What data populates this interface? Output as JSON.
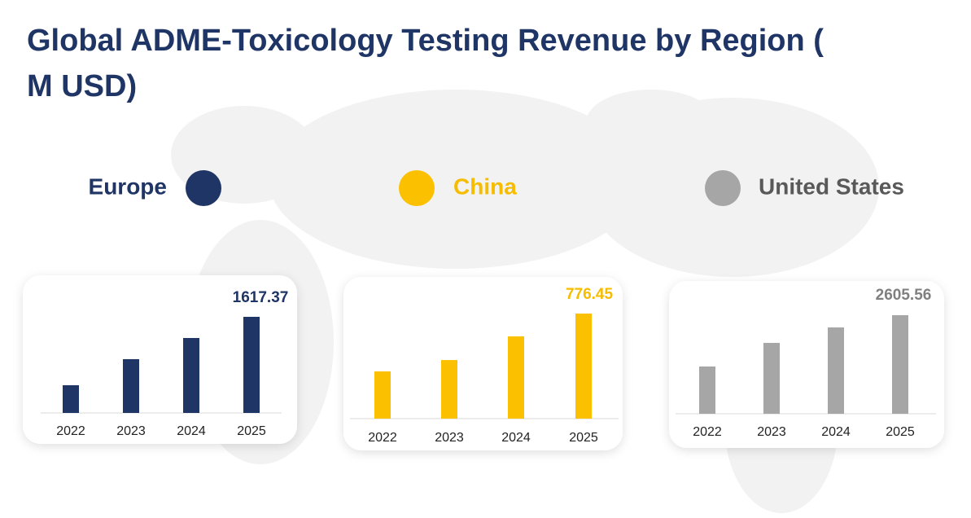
{
  "title": "Global ADME-Toxicology Testing Revenue by Region (M USD)",
  "chart_data": [
    {
      "type": "bar",
      "categories": [
        "2022",
        "2023",
        "2024",
        "2025"
      ],
      "series": [
        {
          "name": "Europe",
          "color": "#1f3566",
          "values": [
            466,
            905,
            1261,
            1617.37
          ]
        }
      ]
    },
    {
      "type": "bar",
      "categories": [
        "2022",
        "2023",
        "2024",
        "2025"
      ],
      "series": [
        {
          "name": "China",
          "color": "#fbc000",
          "values": [
            349,
            433,
            608,
            776.45
          ]
        }
      ]
    },
    {
      "type": "bar",
      "categories": [
        "2022",
        "2023",
        "2024",
        "2025"
      ],
      "series": [
        {
          "name": "United States",
          "color": "#a6a6a6",
          "values": [
            1249,
            1873,
            2282,
            2605.56
          ]
        }
      ]
    }
  ]
}
